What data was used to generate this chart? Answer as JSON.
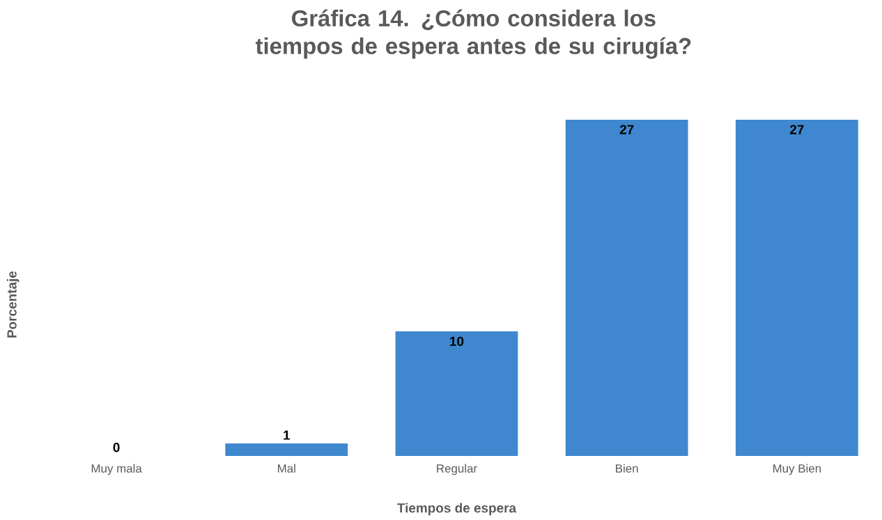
{
  "chart_data": {
    "type": "bar",
    "title": "Gráfica 14. ¿Cómo considera los tiempos de espera antes de su cirugía?",
    "xlabel": "Tiempos de espera",
    "ylabel": "Porcentaje",
    "categories": [
      "Muy mala",
      "Mal",
      "Regular",
      "Bien",
      "Muy Bien"
    ],
    "values": [
      0,
      1,
      10,
      27,
      27
    ],
    "value_labels": [
      "0",
      "1",
      "10",
      "27",
      "27"
    ],
    "color": "#3f88cf"
  }
}
